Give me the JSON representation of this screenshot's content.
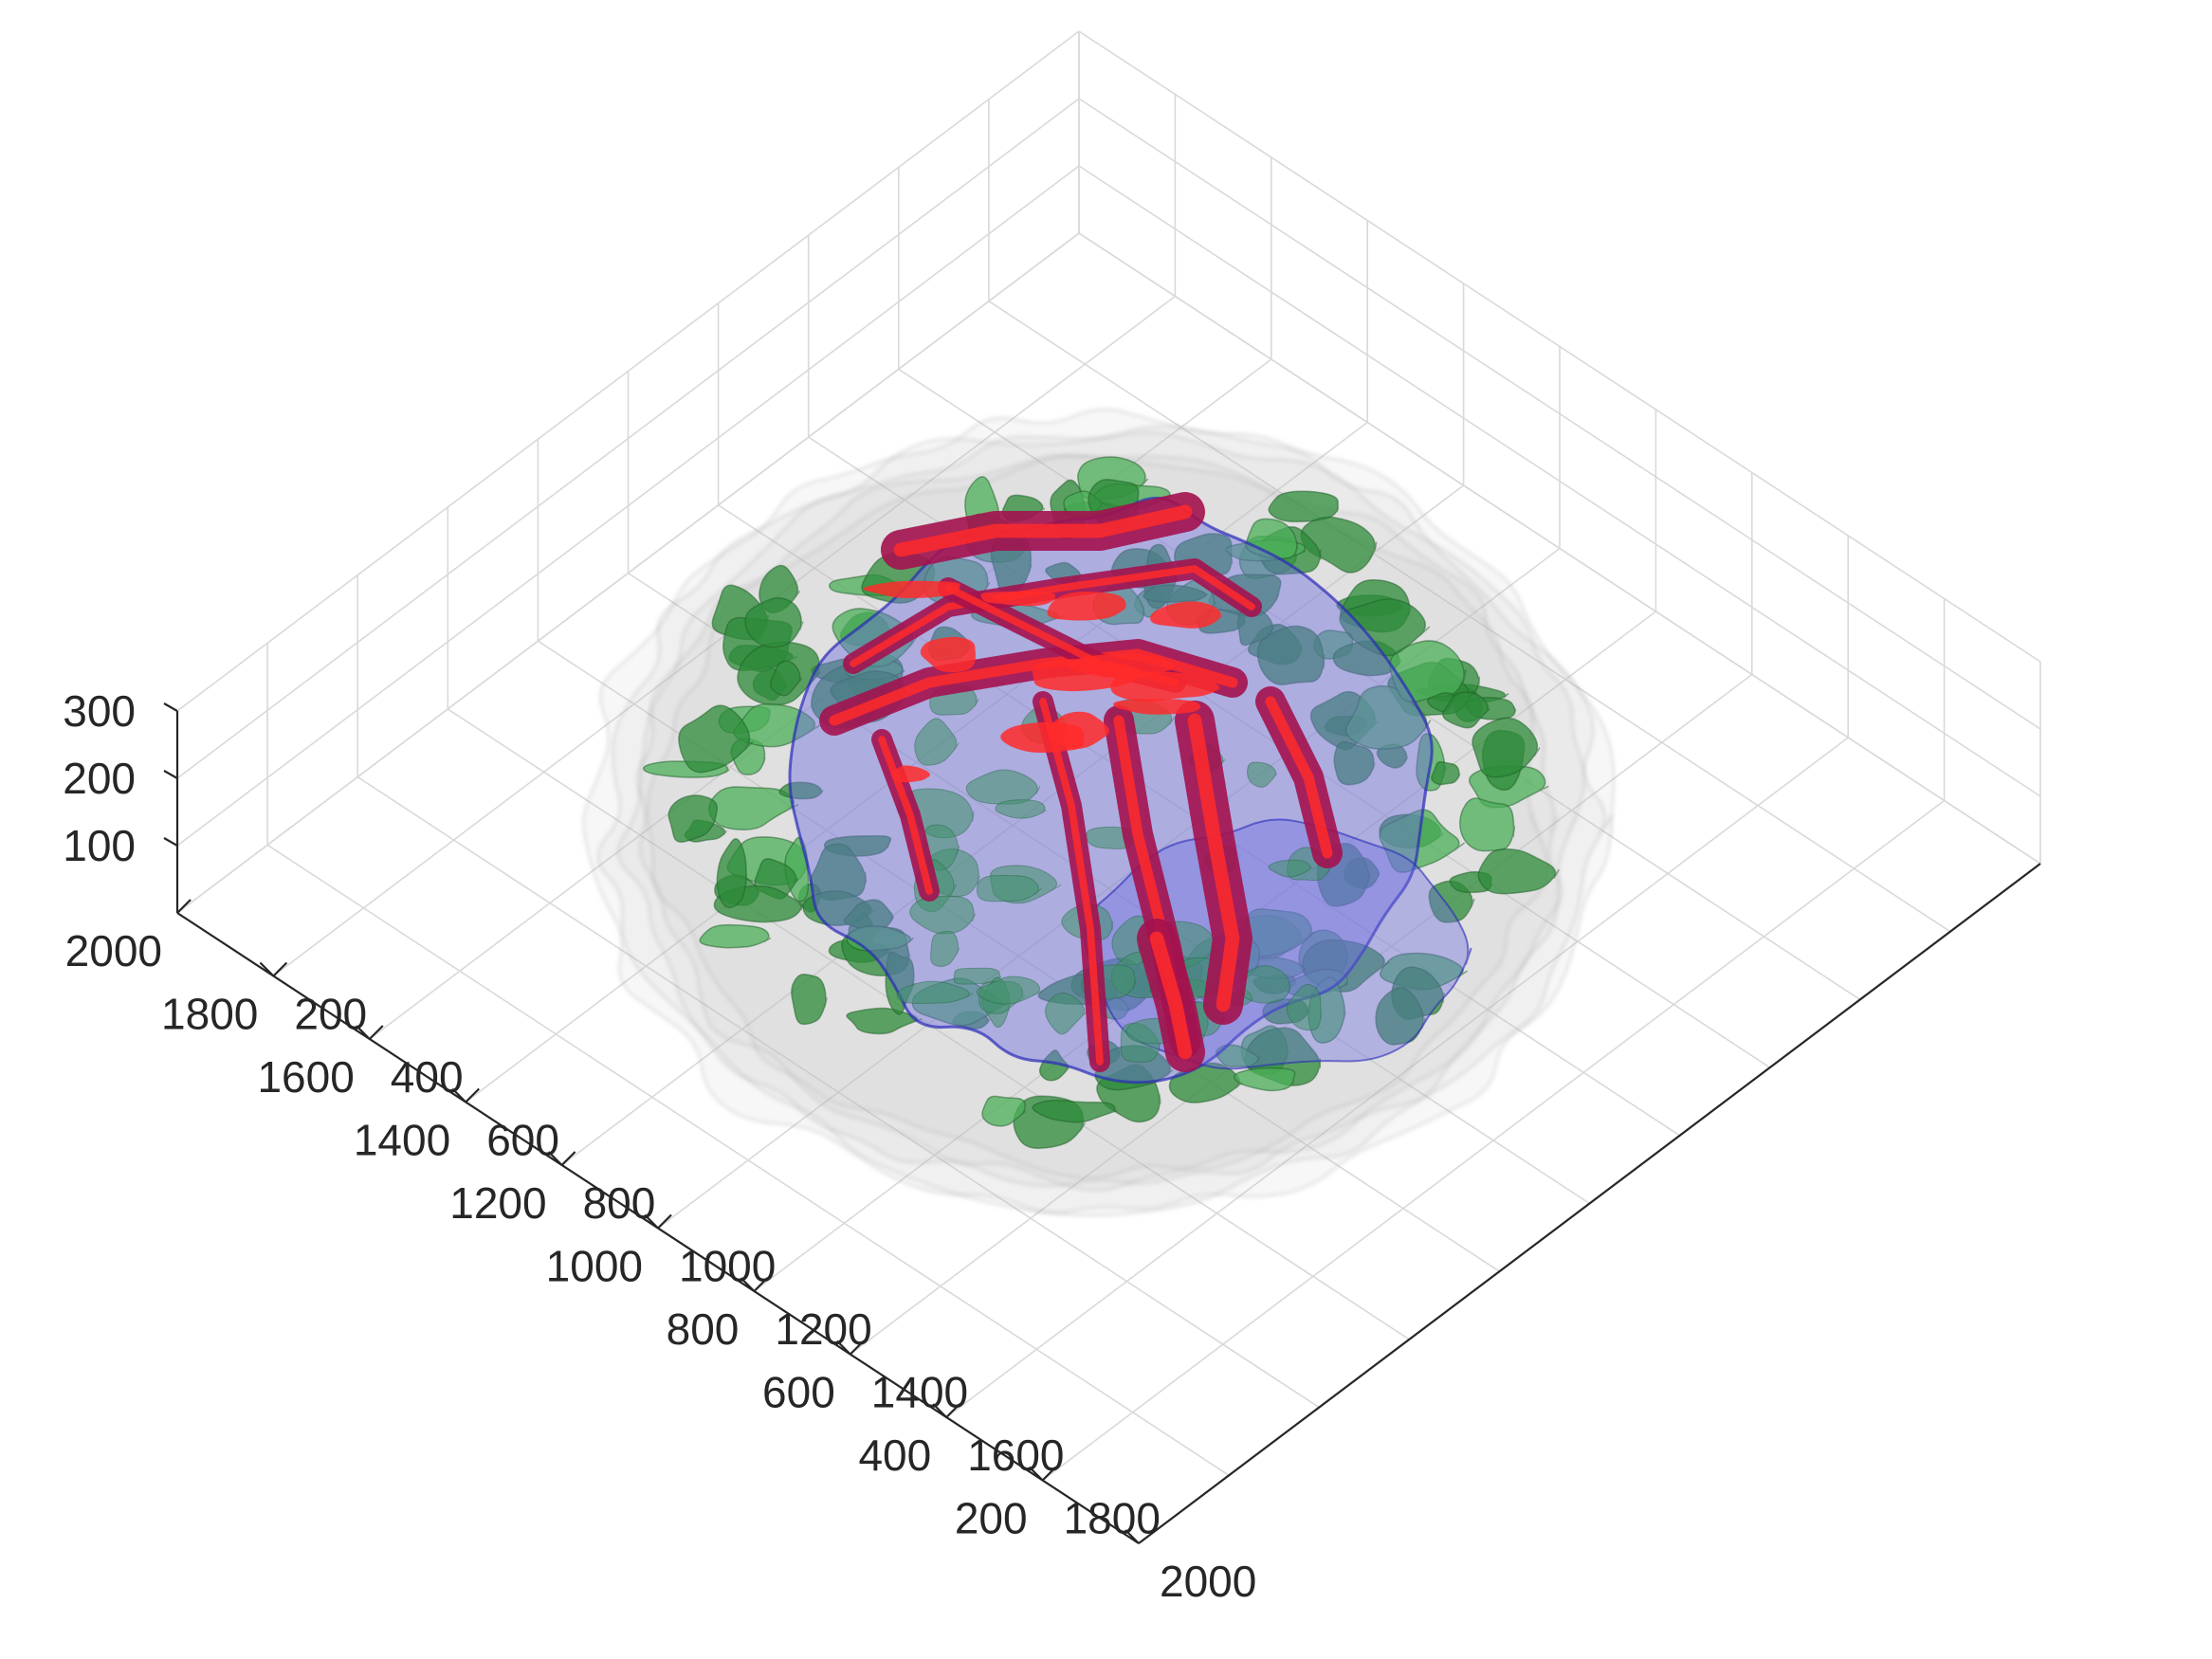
{
  "chart_data": {
    "type": "3d-isosurface",
    "title": "",
    "xlabel": "",
    "ylabel": "",
    "zlabel": "",
    "grid": true,
    "view": "isometric-top",
    "x_axis": {
      "ticks": [
        "200",
        "400",
        "600",
        "800",
        "1000",
        "1200",
        "1400",
        "1600",
        "1800",
        "2000"
      ],
      "range": [
        0,
        2000
      ]
    },
    "y_axis": {
      "ticks": [
        "2000",
        "1800",
        "1600",
        "1400",
        "1200",
        "1000",
        "800",
        "600",
        "400",
        "200"
      ],
      "range": [
        0,
        2000
      ]
    },
    "z_axis": {
      "ticks": [
        "100",
        "200",
        "300"
      ],
      "range": [
        0,
        300
      ]
    },
    "series": [
      {
        "color": "#bfbfbf",
        "opacity": 0.35
      },
      {
        "color": "#2e8b3a",
        "opacity": 0.75
      },
      {
        "color": "#6f6fe0",
        "opacity": 0.45
      },
      {
        "color": "#ff2a2a",
        "opacity": 0.9
      }
    ]
  }
}
